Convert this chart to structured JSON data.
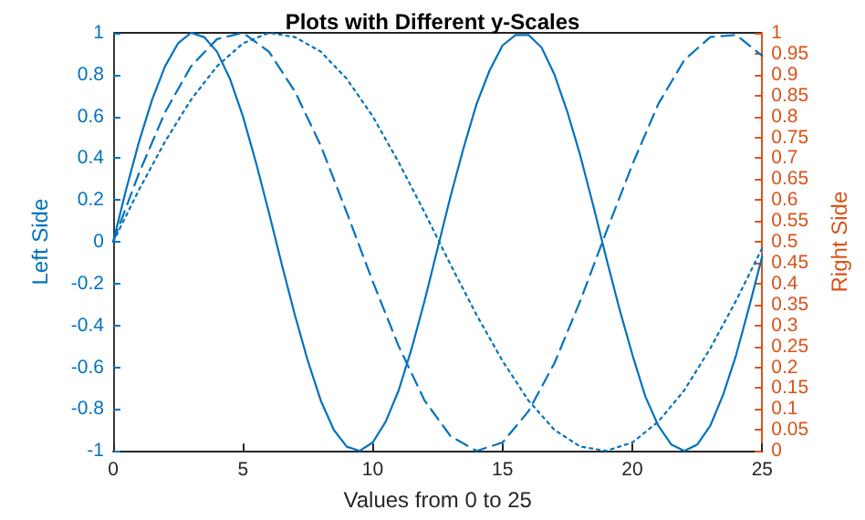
{
  "chart_data": {
    "type": "line",
    "title": "Plots with Different y-Scales",
    "xlabel": "Values from 0 to 25",
    "ylabel": "Left Side",
    "y2label": "Right Side",
    "xlim": [
      0,
      25
    ],
    "xticks": [
      0,
      5,
      10,
      15,
      20,
      25
    ],
    "ylim": [
      -1,
      1
    ],
    "yticks": [
      -1,
      -0.8,
      -0.6,
      -0.4,
      -0.2,
      0,
      0.2,
      0.4,
      0.6,
      0.8,
      1
    ],
    "y2lim": [
      0,
      1
    ],
    "y2ticks": [
      0,
      0.05,
      0.1,
      0.15,
      0.2,
      0.25,
      0.3,
      0.35,
      0.4,
      0.45,
      0.5,
      0.55,
      0.6,
      0.65,
      0.7,
      0.75,
      0.8,
      0.85,
      0.9,
      0.95,
      1
    ],
    "grid": false,
    "marker": "none",
    "series": [
      {
        "color": "#0072bd",
        "line_style": "solid",
        "x": [
          0,
          0.5,
          1,
          1.5,
          2,
          2.5,
          3,
          3.5,
          4,
          4.5,
          5,
          5.5,
          6,
          6.5,
          7,
          7.5,
          8,
          8.5,
          9,
          9.5,
          10,
          10.5,
          11,
          11.5,
          12,
          12.5,
          13,
          13.5,
          14,
          14.5,
          15,
          15.5,
          16,
          16.5,
          17,
          17.5,
          18,
          18.5,
          19,
          19.5,
          20,
          20.5,
          21,
          21.5,
          22,
          22.5,
          23,
          23.5,
          24,
          24.5,
          25
        ],
        "values": [
          0,
          0.25,
          0.48,
          0.68,
          0.84,
          0.95,
          1,
          0.98,
          0.91,
          0.78,
          0.6,
          0.38,
          0.14,
          -0.11,
          -0.35,
          -0.57,
          -0.76,
          -0.9,
          -0.98,
          -1,
          -0.96,
          -0.86,
          -0.71,
          -0.51,
          -0.28,
          -0.03,
          0.22,
          0.45,
          0.66,
          0.82,
          0.94,
          0.99,
          0.99,
          0.93,
          0.8,
          0.62,
          0.41,
          0.17,
          -0.08,
          -0.32,
          -0.54,
          -0.74,
          -0.88,
          -0.97,
          -1,
          -0.97,
          -0.88,
          -0.73,
          -0.54,
          -0.31,
          -0.07
        ]
      },
      {
        "color": "#0072bd",
        "line_style": "dashed",
        "x": [
          0,
          1,
          2,
          3,
          4,
          5,
          6,
          7,
          8,
          9,
          10,
          11,
          12,
          13,
          14,
          15,
          16,
          17,
          18,
          19,
          20,
          21,
          22,
          23,
          24,
          25
        ],
        "values": [
          0,
          0.33,
          0.62,
          0.84,
          0.97,
          1,
          0.91,
          0.72,
          0.46,
          0.14,
          -0.19,
          -0.5,
          -0.76,
          -0.93,
          -1,
          -0.96,
          -0.81,
          -0.58,
          -0.28,
          0.05,
          0.37,
          0.66,
          0.87,
          0.98,
          0.99,
          0.89
        ]
      },
      {
        "color": "#0072bd",
        "line_style": "dotted",
        "x": [
          0,
          1,
          2,
          3,
          4,
          5,
          6,
          7,
          8,
          9,
          10,
          11,
          12,
          13,
          14,
          15,
          16,
          17,
          18,
          19,
          20,
          21,
          22,
          23,
          24,
          25
        ],
        "values": [
          0,
          0.25,
          0.48,
          0.68,
          0.84,
          0.95,
          1,
          0.98,
          0.91,
          0.78,
          0.6,
          0.38,
          0.14,
          -0.11,
          -0.35,
          -0.57,
          -0.76,
          -0.9,
          -0.98,
          -1,
          -0.96,
          -0.86,
          -0.71,
          -0.51,
          -0.28,
          -0.03
        ]
      }
    ]
  }
}
